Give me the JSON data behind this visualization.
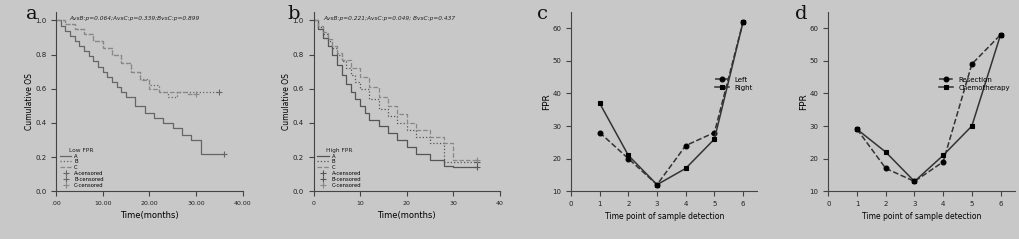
{
  "panel_a": {
    "label": "a",
    "title_text": "AvsB:p=0.064;AvsC:p=0.339;BvsC:p=0.899",
    "subtitle": "Low FPR",
    "xlabel": "Time(months)",
    "ylabel": "Cumulative OS",
    "xlim": [
      0,
      40
    ],
    "ylim": [
      0,
      1.05
    ],
    "xticks": [
      0.0,
      10.0,
      20.0,
      30.0,
      40.0
    ],
    "xticklabels": [
      ".00",
      "10.00",
      "20.00",
      "30.00",
      "40.00"
    ],
    "yticks": [
      0.0,
      0.2,
      0.4,
      0.6,
      0.8,
      1.0
    ],
    "curves": [
      {
        "name": "A",
        "style": "solid",
        "color": "#666666",
        "x": [
          0,
          1,
          2,
          3,
          4,
          5,
          6,
          7,
          8,
          9,
          10,
          11,
          12,
          13,
          14,
          15,
          17,
          19,
          21,
          23,
          25,
          27,
          29,
          31,
          36
        ],
        "y": [
          1.0,
          0.97,
          0.94,
          0.91,
          0.88,
          0.85,
          0.82,
          0.79,
          0.76,
          0.73,
          0.7,
          0.67,
          0.64,
          0.61,
          0.58,
          0.55,
          0.5,
          0.46,
          0.43,
          0.4,
          0.37,
          0.33,
          0.3,
          0.22,
          0.22
        ]
      },
      {
        "name": "B",
        "style": "dotted",
        "color": "#666666",
        "x": [
          0,
          2,
          4,
          6,
          8,
          10,
          12,
          14,
          16,
          18,
          20,
          22,
          24,
          26,
          28,
          30,
          35
        ],
        "y": [
          1.0,
          0.98,
          0.95,
          0.92,
          0.88,
          0.84,
          0.8,
          0.75,
          0.7,
          0.66,
          0.62,
          0.58,
          0.55,
          0.58,
          0.58,
          0.58,
          0.58
        ]
      },
      {
        "name": "C",
        "style": "dashed",
        "color": "#888888",
        "x": [
          0,
          2,
          4,
          6,
          8,
          10,
          12,
          14,
          16,
          18,
          20,
          22,
          25,
          28,
          30
        ],
        "y": [
          1.0,
          0.98,
          0.95,
          0.92,
          0.88,
          0.84,
          0.8,
          0.75,
          0.7,
          0.65,
          0.6,
          0.58,
          0.58,
          0.57,
          0.57
        ]
      }
    ]
  },
  "panel_b": {
    "label": "b",
    "title_text": "AvsB:p=0.221;AvsC:p=0.049; BvsC:p=0.437",
    "subtitle": "High FPR",
    "xlabel": "Time(months)",
    "ylabel": "Cumulative OS",
    "xlim": [
      0,
      40
    ],
    "ylim": [
      0,
      1.05
    ],
    "xticks": [
      0,
      10,
      20,
      30,
      40
    ],
    "yticks": [
      0.0,
      0.2,
      0.4,
      0.6,
      0.8,
      1.0
    ],
    "curves": [
      {
        "name": "A",
        "style": "solid",
        "color": "#555555",
        "x": [
          0,
          1,
          2,
          3,
          4,
          5,
          6,
          7,
          8,
          9,
          10,
          11,
          12,
          14,
          16,
          18,
          20,
          22,
          25,
          28,
          30,
          35
        ],
        "y": [
          1.0,
          0.95,
          0.9,
          0.85,
          0.8,
          0.74,
          0.68,
          0.63,
          0.58,
          0.54,
          0.5,
          0.46,
          0.42,
          0.38,
          0.34,
          0.3,
          0.26,
          0.22,
          0.18,
          0.15,
          0.14,
          0.14
        ]
      },
      {
        "name": "B",
        "style": "dotted",
        "color": "#555555",
        "x": [
          0,
          1,
          2,
          3,
          4,
          5,
          6,
          7,
          8,
          9,
          10,
          12,
          14,
          16,
          18,
          20,
          22,
          25,
          28,
          30,
          35
        ],
        "y": [
          1.0,
          0.96,
          0.92,
          0.88,
          0.84,
          0.8,
          0.76,
          0.72,
          0.68,
          0.64,
          0.6,
          0.54,
          0.48,
          0.44,
          0.4,
          0.36,
          0.32,
          0.28,
          0.17,
          0.17,
          0.17
        ]
      },
      {
        "name": "C",
        "style": "dashed",
        "color": "#888888",
        "x": [
          0,
          1,
          2,
          3,
          4,
          5,
          6,
          8,
          10,
          12,
          14,
          16,
          18,
          20,
          22,
          25,
          28,
          30,
          35
        ],
        "y": [
          1.0,
          0.97,
          0.93,
          0.89,
          0.85,
          0.81,
          0.77,
          0.72,
          0.67,
          0.61,
          0.55,
          0.5,
          0.45,
          0.4,
          0.36,
          0.32,
          0.28,
          0.18,
          0.18
        ]
      }
    ]
  },
  "panel_c": {
    "label": "c",
    "xlabel": "Time point of sample detection",
    "ylabel": "FPR",
    "xlim": [
      0,
      6.5
    ],
    "ylim": [
      10,
      65
    ],
    "xticks": [
      0,
      1,
      2,
      3,
      4,
      5,
      6
    ],
    "yticks": [
      10,
      20,
      30,
      40,
      50,
      60
    ],
    "lines": [
      {
        "name": "Left",
        "style": "dashed",
        "marker": "o",
        "color": "#333333",
        "x": [
          1,
          2,
          3,
          4,
          5,
          6
        ],
        "y": [
          28,
          20,
          12,
          24,
          28,
          62
        ]
      },
      {
        "name": "Right",
        "style": "solid",
        "marker": "s",
        "color": "#333333",
        "x": [
          1,
          2,
          3,
          4,
          5,
          6
        ],
        "y": [
          37,
          21,
          12,
          17,
          26,
          62
        ]
      }
    ]
  },
  "panel_d": {
    "label": "d",
    "xlabel": "Time point of sample detection",
    "ylabel": "FPR",
    "xlim": [
      0,
      6.5
    ],
    "ylim": [
      10,
      65
    ],
    "xticks": [
      0,
      1,
      2,
      3,
      4,
      5,
      6
    ],
    "yticks": [
      10,
      20,
      30,
      40,
      50,
      60
    ],
    "lines": [
      {
        "name": "Resection",
        "style": "dashed",
        "marker": "o",
        "color": "#333333",
        "x": [
          1,
          2,
          3,
          4,
          5,
          6
        ],
        "y": [
          29,
          17,
          13,
          19,
          49,
          58
        ]
      },
      {
        "name": "Chemotherapy",
        "style": "solid",
        "marker": "s",
        "color": "#333333",
        "x": [
          1,
          2,
          3,
          4,
          5,
          6
        ],
        "y": [
          29,
          22,
          13,
          21,
          30,
          58
        ]
      }
    ]
  },
  "bg_color": "#c8c8c8",
  "plot_bg_color": "#c8c8c8",
  "text_color": "#000000"
}
